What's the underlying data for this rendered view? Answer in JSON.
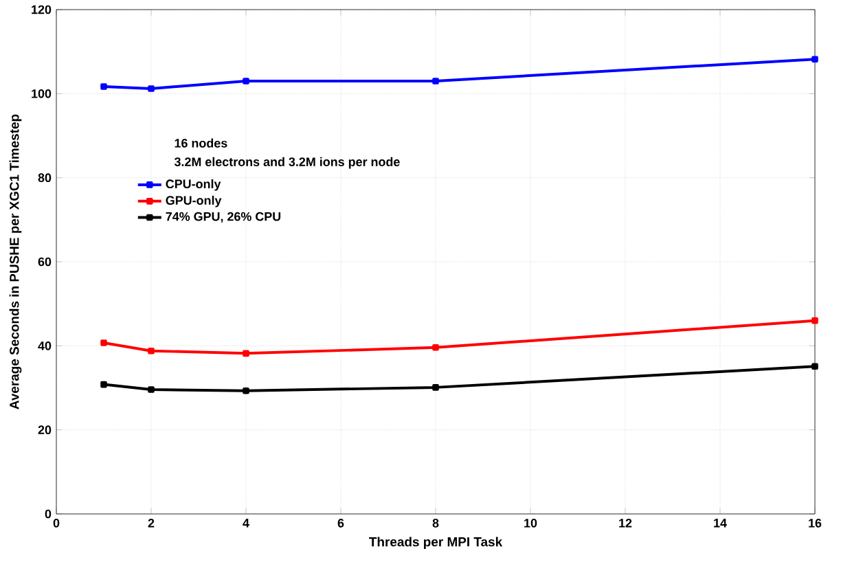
{
  "chart_data": {
    "type": "line",
    "legend_title": "16 nodes",
    "annotations": [
      "3.2M electrons and 3.2M ions per node"
    ],
    "xlabel": "Threads per MPI Task",
    "ylabel": "Average Seconds in PUSHE per XGC1 Timestep",
    "x": [
      1,
      2,
      4,
      8,
      16
    ],
    "series": [
      {
        "name": "CPU-only",
        "color": "#0000ff",
        "values": [
          101.7,
          101.2,
          103,
          103,
          108.2
        ]
      },
      {
        "name": "GPU-only",
        "color": "#ff0000",
        "values": [
          40.7,
          38.8,
          38.2,
          39.6,
          46
        ]
      },
      {
        "name": "74% GPU, 26% CPU",
        "color": "#000000",
        "values": [
          30.8,
          29.6,
          29.3,
          30.1,
          35.1
        ]
      }
    ],
    "xlim": [
      0,
      16
    ],
    "ylim": [
      0,
      120
    ],
    "xticks": [
      0,
      2,
      4,
      6,
      8,
      10,
      12,
      14,
      16
    ],
    "yticks": [
      0,
      20,
      40,
      60,
      80,
      100,
      120
    ],
    "grid": true,
    "legend": "left",
    "marker": "square",
    "line_style": "solid"
  }
}
